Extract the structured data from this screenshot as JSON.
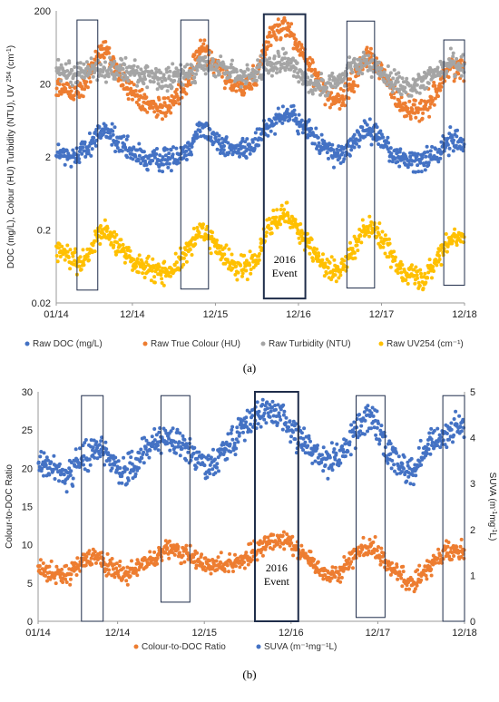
{
  "colors": {
    "doc": "#4472C4",
    "colour": "#ED7D31",
    "turbidity": "#A5A5A5",
    "uv": "#FFC000",
    "box": "#1F2D4A"
  },
  "panels": [
    {
      "panel_label": "(a)",
      "annotation": [
        "2016",
        "Event"
      ],
      "chart_data": {
        "type": "scatter",
        "title": "",
        "xlabel": "",
        "ylabel_parts": [
          "DOC (mg/L), Colour (HU) Turbidity (NTU), UV ",
          "254",
          " (cm",
          "-1",
          ")"
        ],
        "y_scale": "log",
        "ylim": [
          0.02,
          200
        ],
        "yticks": [
          0.02,
          0.2,
          2,
          20,
          200
        ],
        "ytick_labels": [
          "0.02",
          "0.2",
          "2",
          "20",
          "200"
        ],
        "xlim": [
          "2014-01",
          "2018-12"
        ],
        "xtick_labels": [
          "01/14",
          "12/14",
          "12/15",
          "12/16",
          "12/17",
          "12/18"
        ],
        "xticks": [
          "2014-01",
          "2014-12",
          "2015-12",
          "2016-12",
          "2017-12",
          "2018-12"
        ],
        "legend_position": "bottom",
        "highlight_boxes": [
          {
            "x": [
              "2014-04",
              "2014-07"
            ],
            "y": [
              0.03,
              150
            ],
            "emphasized": false
          },
          {
            "x": [
              "2015-07",
              "2015-11"
            ],
            "y": [
              0.031,
              150
            ],
            "emphasized": false
          },
          {
            "x": [
              "2016-07",
              "2017-01"
            ],
            "y": [
              0.023,
              180
            ],
            "emphasized": true
          },
          {
            "x": [
              "2017-07",
              "2017-11"
            ],
            "y": [
              0.032,
              145
            ],
            "emphasized": false
          },
          {
            "x": [
              "2018-09",
              "2018-12"
            ],
            "y": [
              0.035,
              80
            ],
            "emphasized": false
          }
        ],
        "series": [
          {
            "name": "Raw DOC (mg/L)",
            "color_key": "doc",
            "x": [
              "2014-01",
              "2014-03",
              "2014-05",
              "2014-06",
              "2014-08",
              "2014-10",
              "2014-12",
              "2015-02",
              "2015-04",
              "2015-06",
              "2015-08",
              "2015-10",
              "2015-12",
              "2016-02",
              "2016-04",
              "2016-06",
              "2016-08",
              "2016-10",
              "2016-12",
              "2017-02",
              "2017-04",
              "2017-06",
              "2017-08",
              "2017-10",
              "2017-12",
              "2018-02",
              "2018-04",
              "2018-06",
              "2018-08",
              "2018-10",
              "2018-12"
            ],
            "y": [
              2.3,
              1.9,
              2.5,
              3.0,
              5.0,
              3.0,
              2.2,
              1.8,
              1.8,
              2.0,
              2.5,
              5.0,
              3.5,
              2.5,
              2.5,
              3.0,
              6.0,
              8.0,
              6.0,
              4.0,
              2.5,
              2.0,
              3.0,
              5.0,
              3.5,
              2.0,
              1.8,
              1.8,
              2.2,
              3.5,
              3.0
            ]
          },
          {
            "name": "Raw True Colour (HU)",
            "color_key": "colour",
            "x": [
              "2014-01",
              "2014-03",
              "2014-05",
              "2014-06",
              "2014-08",
              "2014-10",
              "2014-12",
              "2015-02",
              "2015-04",
              "2015-06",
              "2015-08",
              "2015-10",
              "2015-12",
              "2016-02",
              "2016-04",
              "2016-06",
              "2016-08",
              "2016-10",
              "2016-12",
              "2017-02",
              "2017-04",
              "2017-06",
              "2017-08",
              "2017-10",
              "2017-12",
              "2018-02",
              "2018-04",
              "2018-06",
              "2018-08",
              "2018-10",
              "2018-12"
            ],
            "y": [
              20,
              15,
              18,
              30,
              60,
              25,
              15,
              10,
              9,
              12,
              20,
              60,
              35,
              20,
              18,
              25,
              90,
              130,
              60,
              30,
              15,
              12,
              20,
              50,
              30,
              12,
              9,
              8,
              15,
              35,
              30
            ]
          },
          {
            "name": "Raw Turbidity (NTU)",
            "color_key": "turbidity",
            "x": [
              "2014-01",
              "2014-03",
              "2014-05",
              "2014-06",
              "2014-08",
              "2014-10",
              "2014-12",
              "2015-02",
              "2015-04",
              "2015-06",
              "2015-08",
              "2015-10",
              "2015-12",
              "2016-02",
              "2016-04",
              "2016-06",
              "2016-08",
              "2016-10",
              "2016-12",
              "2017-02",
              "2017-04",
              "2017-06",
              "2017-08",
              "2017-10",
              "2017-12",
              "2018-02",
              "2018-04",
              "2018-06",
              "2018-08",
              "2018-10",
              "2018-12"
            ],
            "y": [
              35,
              28,
              30,
              32,
              30,
              33,
              30,
              25,
              22,
              24,
              28,
              35,
              33,
              30,
              25,
              30,
              35,
              40,
              30,
              20,
              18,
              22,
              35,
              40,
              30,
              20,
              18,
              20,
              30,
              40,
              35
            ]
          },
          {
            "name": "Raw UV254 (cm⁻¹)",
            "color_key": "uv",
            "x": [
              "2014-01",
              "2014-03",
              "2014-05",
              "2014-06",
              "2014-08",
              "2014-10",
              "2014-12",
              "2015-02",
              "2015-04",
              "2015-06",
              "2015-08",
              "2015-10",
              "2015-12",
              "2016-02",
              "2016-04",
              "2016-06",
              "2016-08",
              "2016-10",
              "2016-12",
              "2017-02",
              "2017-04",
              "2017-06",
              "2017-08",
              "2017-10",
              "2017-12",
              "2018-02",
              "2018-04",
              "2018-06",
              "2018-08",
              "2018-10",
              "2018-12"
            ],
            "y": [
              0.12,
              0.08,
              0.07,
              0.1,
              0.2,
              0.12,
              0.08,
              0.06,
              0.05,
              0.06,
              0.1,
              0.2,
              0.12,
              0.07,
              0.06,
              0.08,
              0.25,
              0.35,
              0.2,
              0.1,
              0.06,
              0.05,
              0.1,
              0.25,
              0.15,
              0.07,
              0.05,
              0.04,
              0.08,
              0.15,
              0.15
            ]
          }
        ]
      }
    },
    {
      "panel_label": "(b)",
      "annotation": [
        "2016",
        "Event"
      ],
      "chart_data": {
        "type": "scatter",
        "title": "",
        "xlabel": "",
        "ylabel": "Colour-to-DOC Ratio",
        "ylabel_right_parts": [
          "SUVA (m",
          "-1",
          "mg",
          "-1",
          "L)"
        ],
        "ylim": [
          0,
          30
        ],
        "yticks": [
          0,
          5,
          10,
          15,
          20,
          25,
          30
        ],
        "ylim_right": [
          0,
          5
        ],
        "yticks_right": [
          0,
          1,
          2,
          3,
          4,
          5
        ],
        "xlim": [
          "2014-01",
          "2018-12"
        ],
        "xtick_labels": [
          "01/14",
          "12/14",
          "12/15",
          "12/16",
          "12/17",
          "12/18"
        ],
        "xticks": [
          "2014-01",
          "2014-12",
          "2015-12",
          "2016-12",
          "2017-12",
          "2018-12"
        ],
        "legend_position": "bottom",
        "highlight_boxes": [
          {
            "x": [
              "2014-07",
              "2014-10"
            ],
            "y": [
              0,
              29.5
            ],
            "emphasized": false
          },
          {
            "x": [
              "2015-06",
              "2015-10"
            ],
            "y": [
              2.5,
              29.5
            ],
            "emphasized": false
          },
          {
            "x": [
              "2016-07",
              "2017-01"
            ],
            "y": [
              0,
              30
            ],
            "emphasized": true
          },
          {
            "x": [
              "2017-09",
              "2018-01"
            ],
            "y": [
              0.5,
              29.5
            ],
            "emphasized": false
          },
          {
            "x": [
              "2018-09",
              "2018-12"
            ],
            "y": [
              0,
              29.5
            ],
            "emphasized": false
          }
        ],
        "series": [
          {
            "name": "Colour-to-DOC Ratio",
            "color_key": "colour",
            "axis": "left",
            "x": [
              "2014-01",
              "2014-03",
              "2014-05",
              "2014-07",
              "2014-09",
              "2014-11",
              "2015-01",
              "2015-03",
              "2015-05",
              "2015-07",
              "2015-09",
              "2015-11",
              "2016-01",
              "2016-03",
              "2016-05",
              "2016-07",
              "2016-09",
              "2016-11",
              "2017-01",
              "2017-03",
              "2017-05",
              "2017-07",
              "2017-09",
              "2017-11",
              "2018-01",
              "2018-03",
              "2018-05",
              "2018-07",
              "2018-09",
              "2018-11"
            ],
            "y": [
              7.0,
              6.5,
              6.0,
              7.5,
              8.5,
              7.0,
              6.0,
              7.0,
              8.0,
              9.5,
              9.0,
              8.0,
              7.0,
              7.5,
              8.0,
              9.0,
              10.5,
              11.0,
              9.5,
              7.5,
              6.0,
              6.5,
              9.0,
              10.0,
              8.0,
              6.0,
              5.0,
              7.0,
              9.0,
              9.0
            ]
          },
          {
            "name": "SUVA (m⁻¹mg⁻¹L)",
            "color_key": "doc",
            "axis": "right",
            "x": [
              "2014-01",
              "2014-03",
              "2014-05",
              "2014-07",
              "2014-09",
              "2014-11",
              "2015-01",
              "2015-03",
              "2015-05",
              "2015-07",
              "2015-09",
              "2015-11",
              "2016-01",
              "2016-03",
              "2016-05",
              "2016-07",
              "2016-09",
              "2016-11",
              "2017-01",
              "2017-03",
              "2017-05",
              "2017-07",
              "2017-09",
              "2017-11",
              "2018-01",
              "2018-03",
              "2018-05",
              "2018-07",
              "2018-09",
              "2018-11"
            ],
            "y": [
              3.5,
              3.3,
              3.2,
              3.5,
              3.8,
              3.6,
              3.2,
              3.5,
              3.9,
              4.0,
              3.8,
              3.6,
              3.4,
              3.8,
              4.2,
              4.4,
              4.6,
              4.4,
              4.0,
              3.7,
              3.5,
              3.6,
              4.2,
              4.5,
              3.8,
              3.4,
              3.3,
              3.8,
              4.1,
              4.2
            ]
          }
        ]
      }
    }
  ]
}
